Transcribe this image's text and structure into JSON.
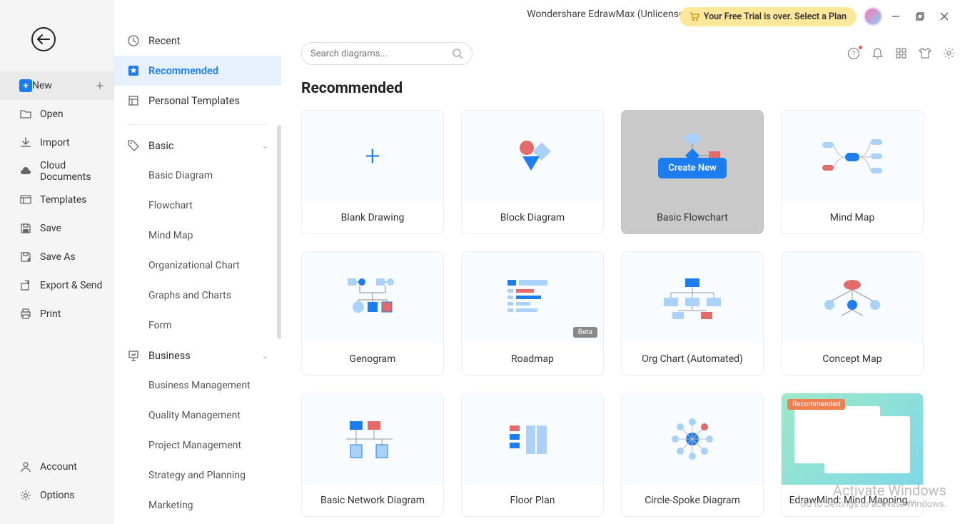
{
  "app_title": "Wondershare EdrawMax (Unlicensed Version)",
  "trial_message": "Your Free Trial is over. Select a Plan",
  "search_placeholder": "Search diagrams...",
  "section_title": "Recommended",
  "left": {
    "back_label": "Back",
    "items": [
      {
        "label": "New",
        "icon": "new",
        "highlight": true,
        "hasPlus": true
      },
      {
        "label": "Open",
        "icon": "folder"
      },
      {
        "label": "Import",
        "icon": "import"
      },
      {
        "label": "Cloud Documents",
        "icon": "cloud"
      },
      {
        "label": "Templates",
        "icon": "templates"
      },
      {
        "label": "Save",
        "icon": "save"
      },
      {
        "label": "Save As",
        "icon": "saveas"
      },
      {
        "label": "Export & Send",
        "icon": "export"
      },
      {
        "label": "Print",
        "icon": "print"
      }
    ],
    "bottom": [
      {
        "label": "Account",
        "icon": "account"
      },
      {
        "label": "Options",
        "icon": "gear"
      }
    ]
  },
  "mid": {
    "top": [
      {
        "label": "Recent",
        "icon": "clock"
      },
      {
        "label": "Recommended",
        "icon": "star",
        "active": true
      },
      {
        "label": "Personal Templates",
        "icon": "personal"
      }
    ],
    "categories": [
      {
        "label": "Basic",
        "icon": "tag",
        "subs": [
          "Basic Diagram",
          "Flowchart",
          "Mind Map",
          "Organizational Chart",
          "Graphs and Charts",
          "Form"
        ]
      },
      {
        "label": "Business",
        "icon": "presentation",
        "subs": [
          "Business Management",
          "Quality Management",
          "Project Management",
          "Strategy and Planning",
          "Marketing"
        ]
      }
    ]
  },
  "cards": [
    {
      "label": "Blank Drawing",
      "thumb": "plus"
    },
    {
      "label": "Block Diagram",
      "thumb": "block"
    },
    {
      "label": "Basic Flowchart",
      "thumb": "flowchart",
      "hovered": true,
      "create": "Create New"
    },
    {
      "label": "Mind Map",
      "thumb": "mindmap"
    },
    {
      "label": "Genogram",
      "thumb": "genogram"
    },
    {
      "label": "Roadmap",
      "thumb": "roadmap",
      "badge": "Beta"
    },
    {
      "label": "Org Chart (Automated)",
      "thumb": "orgchart"
    },
    {
      "label": "Concept Map",
      "thumb": "concept"
    },
    {
      "label": "Basic Network Diagram",
      "thumb": "network"
    },
    {
      "label": "Floor Plan",
      "thumb": "floorplan"
    },
    {
      "label": "Circle-Spoke Diagram",
      "thumb": "spoke"
    },
    {
      "label": "EdrawMind: Mind Mapping...",
      "thumb": "edrawmind",
      "recbadge": "Recommended"
    }
  ],
  "watermark": {
    "l1": "Activate Windows",
    "l2": "Go to Settings to activate Windows."
  },
  "colors": {
    "accent": "#1b7df0",
    "light": "#a9d1fa",
    "red": "#e56a6a"
  }
}
